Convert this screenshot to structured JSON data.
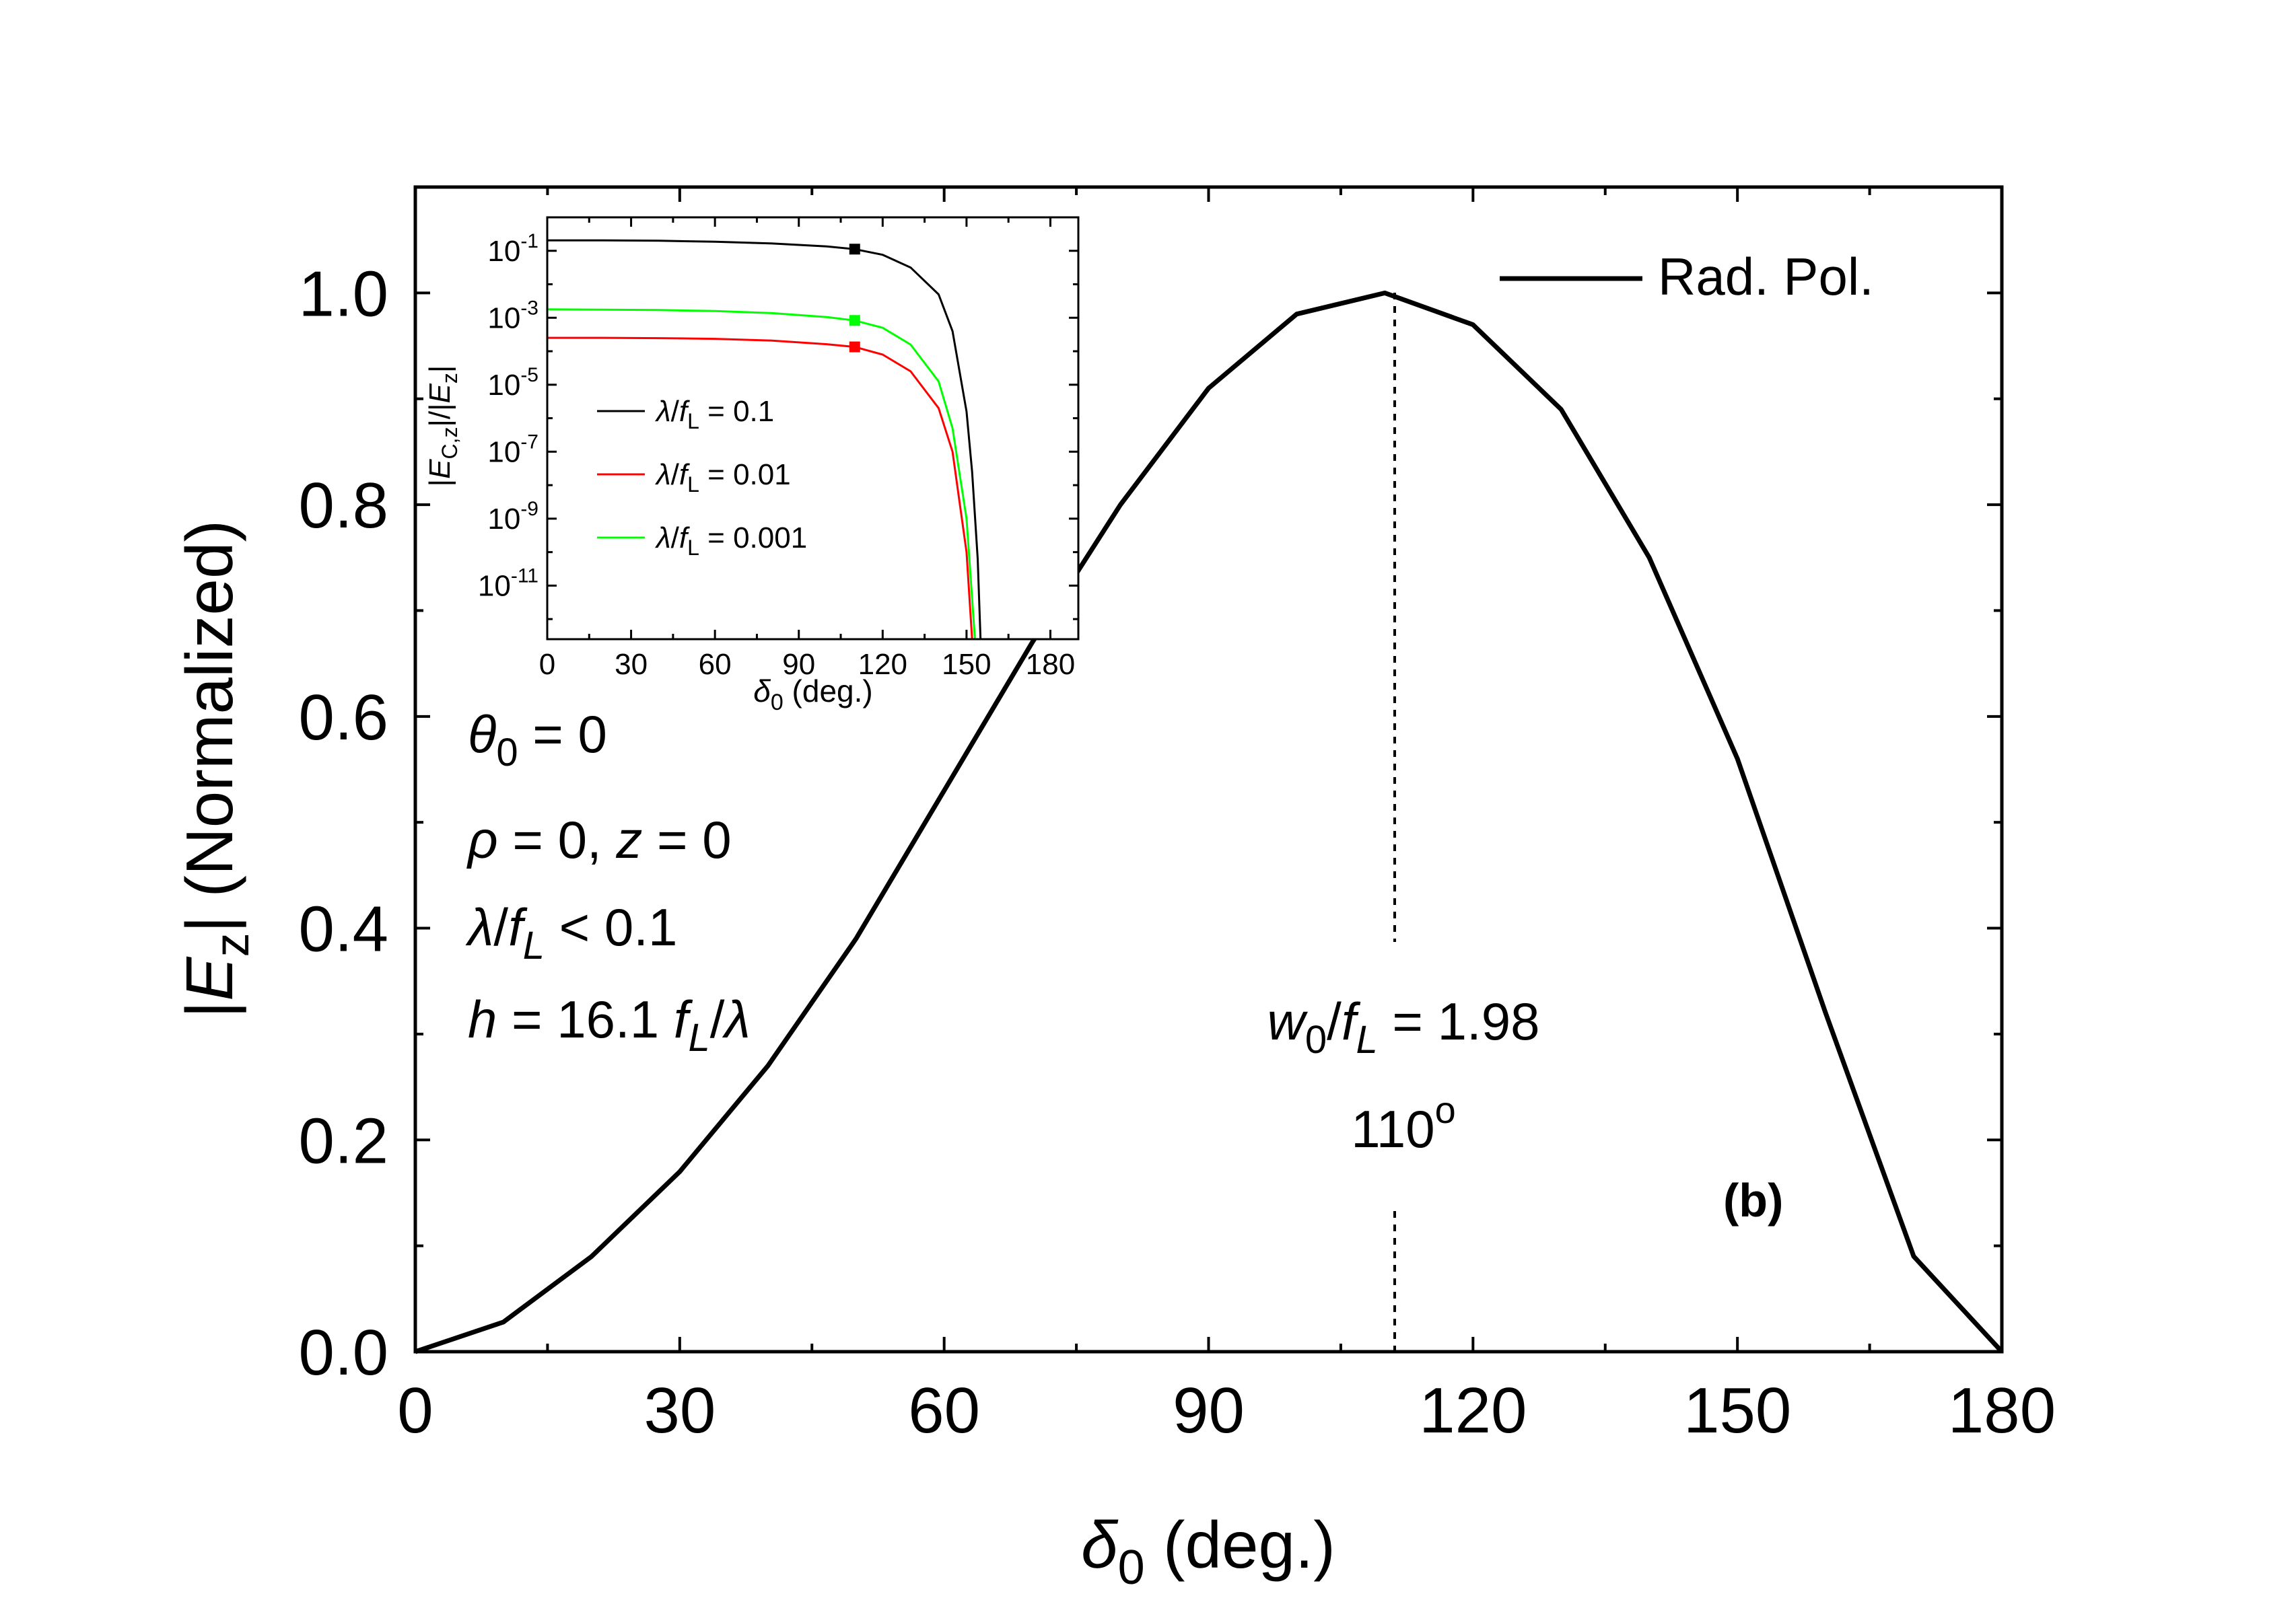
{
  "chart_data": [
    {
      "type": "line",
      "panel_label": "(b)",
      "xlabel": {
        "sym": "δ",
        "sub": "0",
        "unit": " (deg.)"
      },
      "ylabel": {
        "pre": "|",
        "sym": "E",
        "sub": "z",
        "post": "| (Normalized)"
      },
      "xlim": [
        0,
        180
      ],
      "ylim": [
        0,
        1.1
      ],
      "xticks": [
        "0",
        "30",
        "60",
        "90",
        "120",
        "150",
        "180"
      ],
      "yticks": [
        "0.0",
        "0.2",
        "0.4",
        "0.6",
        "0.8",
        "1.0"
      ],
      "legend": {
        "position": "top-right",
        "entries": [
          "Rad. Pol."
        ]
      },
      "series": [
        {
          "name": "Rad. Pol.",
          "color": "#000000",
          "x": [
            0,
            10,
            20,
            30,
            40,
            50,
            60,
            70,
            80,
            90,
            100,
            110,
            120,
            130,
            140,
            150,
            160,
            170,
            180
          ],
          "y": [
            0,
            0.028,
            0.09,
            0.17,
            0.27,
            0.39,
            0.53,
            0.67,
            0.8,
            0.91,
            0.98,
            1.0,
            0.97,
            0.89,
            0.75,
            0.56,
            0.32,
            0.09,
            0
          ]
        }
      ],
      "peak_x": 110,
      "annotations": {
        "params": [
          {
            "sym": "θ",
            "sub": "0",
            "rest": " = 0"
          },
          {
            "sym": "ρ",
            "mid": " = 0, ",
            "sym2": "z",
            "rest": " = 0"
          },
          {
            "sym": "λ",
            "mid": "/",
            "sym2": "f",
            "sub": "L",
            "rest": " < 0.1"
          },
          {
            "sym": "h",
            "mid": " = 16.1 ",
            "sym2": "f",
            "sub": "L",
            "rest": "/",
            "sym3": "λ"
          }
        ],
        "peak": {
          "sym": "w",
          "sub": "0",
          "mid": "/",
          "sym2": "f",
          "sub2": "L",
          "rest": " = 1.98",
          "angle": "110",
          "degree": "o"
        }
      }
    },
    {
      "type": "line",
      "scale": "log",
      "xlabel": {
        "sym": "δ",
        "sub": "0",
        "unit": " (deg.)"
      },
      "ylabel": {
        "t1": "|",
        "sym": "E",
        "sub": "C,z",
        "t2": "|/|",
        "sym2": "E",
        "sub2": "z",
        "t3": "|"
      },
      "xlim": [
        0,
        190
      ],
      "ylim_log10": [
        -12.6,
        0
      ],
      "xticks": [
        "0",
        "30",
        "60",
        "90",
        "120",
        "150",
        "180"
      ],
      "yticks_exp": [
        "-1",
        "-3",
        "-5",
        "-7",
        "-9",
        "-11"
      ],
      "legend": {
        "position": "center-left"
      },
      "series": [
        {
          "name_sym": "λ",
          "name_mid": "/",
          "name_sym2": "f",
          "name_sub": "L",
          "name_rest": " = 0.1",
          "color": "#000000",
          "x": [
            0,
            20,
            40,
            60,
            80,
            100,
            110,
            120,
            130,
            140,
            145,
            150,
            152,
            154,
            155
          ],
          "log10_y": [
            -0.69,
            -0.69,
            -0.7,
            -0.73,
            -0.78,
            -0.87,
            -0.95,
            -1.12,
            -1.5,
            -2.3,
            -3.4,
            -5.8,
            -7.6,
            -10.2,
            -12.6
          ],
          "marker_x": 110
        },
        {
          "name_sym": "λ",
          "name_mid": "/",
          "name_sym2": "f",
          "name_sub": "L",
          "name_rest": " = 0.01",
          "color": "#ff0000",
          "x": [
            0,
            20,
            40,
            60,
            80,
            100,
            110,
            120,
            130,
            140,
            145,
            150,
            152
          ],
          "log10_y": [
            -3.6,
            -3.6,
            -3.61,
            -3.63,
            -3.68,
            -3.79,
            -3.87,
            -4.1,
            -4.6,
            -5.7,
            -7.0,
            -10.0,
            -12.6
          ],
          "marker_x": 110
        },
        {
          "name_sym": "λ",
          "name_mid": "/",
          "name_sym2": "f",
          "name_sub": "L",
          "name_rest": " = 0.001",
          "color": "#00ff00",
          "x": [
            0,
            20,
            40,
            60,
            80,
            100,
            110,
            120,
            130,
            140,
            145,
            150,
            153
          ],
          "log10_y": [
            -2.75,
            -2.76,
            -2.77,
            -2.8,
            -2.86,
            -2.98,
            -3.08,
            -3.3,
            -3.8,
            -4.9,
            -6.3,
            -9.0,
            -12.6
          ],
          "marker_x": 110
        }
      ]
    }
  ]
}
